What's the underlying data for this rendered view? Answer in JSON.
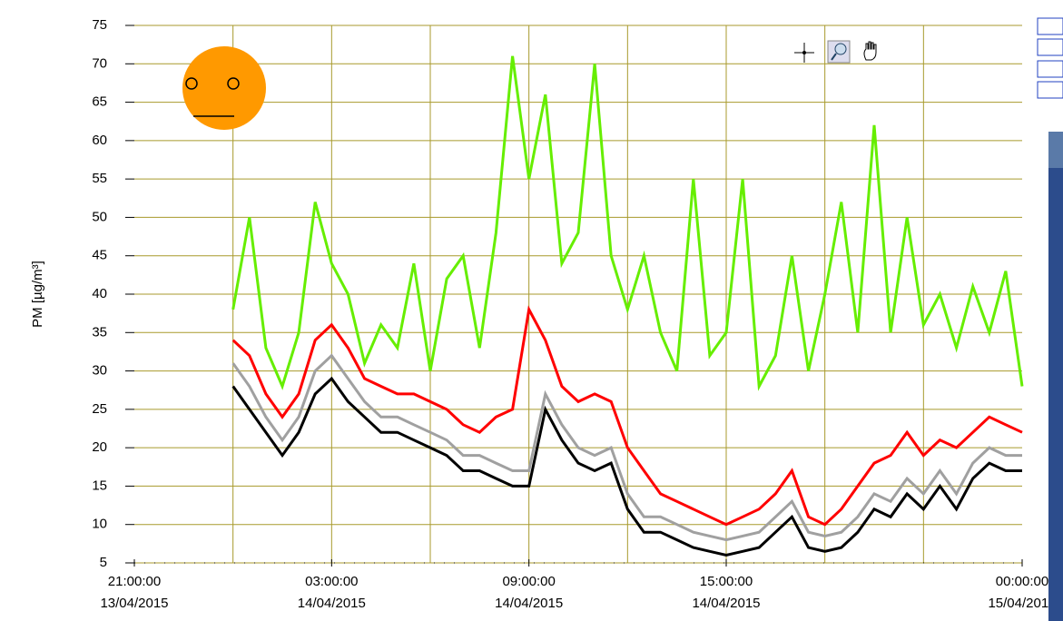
{
  "chart_data": {
    "type": "line",
    "ylabel": "PM [µg/m³]",
    "ylim": [
      5,
      75
    ],
    "yticks": [
      5,
      10,
      15,
      20,
      25,
      30,
      35,
      40,
      45,
      50,
      55,
      60,
      65,
      70,
      75
    ],
    "xlim": [
      "2015-04-13T21:00",
      "2015-04-15T00:00"
    ],
    "xticks": [
      {
        "value": "2015-04-13T21:00",
        "label": [
          "21:00:00",
          "13/04/2015"
        ]
      },
      {
        "value": "2015-04-14T03:00",
        "label": [
          "03:00:00",
          "14/04/2015"
        ]
      },
      {
        "value": "2015-04-14T09:00",
        "label": [
          "09:00:00",
          "14/04/2015"
        ]
      },
      {
        "value": "2015-04-14T15:00",
        "label": [
          "15:00:00",
          "14/04/2015"
        ]
      },
      {
        "value": "2015-04-15T00:00",
        "label": [
          "00:00:00",
          "15/04/2015"
        ]
      }
    ],
    "xgrid": [
      "2015-04-14T00:00",
      "2015-04-14T03:00",
      "2015-04-14T06:00",
      "2015-04-14T09:00",
      "2015-04-14T12:00",
      "2015-04-14T15:00",
      "2015-04-14T18:00",
      "2015-04-14T21:00"
    ],
    "grid": true,
    "grid_color": "#a89a2c",
    "x": [
      "2015-04-14T00:00",
      "2015-04-14T00:30",
      "2015-04-14T01:00",
      "2015-04-14T01:30",
      "2015-04-14T02:00",
      "2015-04-14T02:30",
      "2015-04-14T03:00",
      "2015-04-14T03:30",
      "2015-04-14T04:00",
      "2015-04-14T04:30",
      "2015-04-14T05:00",
      "2015-04-14T05:30",
      "2015-04-14T06:00",
      "2015-04-14T06:30",
      "2015-04-14T07:00",
      "2015-04-14T07:30",
      "2015-04-14T08:00",
      "2015-04-14T08:30",
      "2015-04-14T09:00",
      "2015-04-14T09:30",
      "2015-04-14T10:00",
      "2015-04-14T10:30",
      "2015-04-14T11:00",
      "2015-04-14T11:30",
      "2015-04-14T12:00",
      "2015-04-14T12:30",
      "2015-04-14T13:00",
      "2015-04-14T13:30",
      "2015-04-14T14:00",
      "2015-04-14T14:30",
      "2015-04-14T15:00",
      "2015-04-14T15:30",
      "2015-04-14T16:00",
      "2015-04-14T16:30",
      "2015-04-14T17:00",
      "2015-04-14T17:30",
      "2015-04-14T18:00",
      "2015-04-14T18:30",
      "2015-04-14T19:00",
      "2015-04-14T19:30",
      "2015-04-14T20:00",
      "2015-04-14T20:30",
      "2015-04-14T21:00",
      "2015-04-14T21:30",
      "2015-04-14T22:00",
      "2015-04-14T22:30",
      "2015-04-14T23:00",
      "2015-04-14T23:30",
      "2015-04-15T00:00"
    ],
    "series": [
      {
        "color": "#66ee00",
        "values": [
          38,
          50,
          33,
          28,
          35,
          52,
          44,
          40,
          31,
          36,
          33,
          44,
          30,
          42,
          45,
          33,
          48,
          71,
          55,
          66,
          44,
          48,
          70,
          45,
          38,
          45,
          35,
          30,
          55,
          32,
          35,
          55,
          28,
          32,
          45,
          30,
          40,
          52,
          35,
          62,
          35,
          50,
          36,
          40,
          33,
          41,
          35,
          43,
          28
        ]
      },
      {
        "color": "#ff0000",
        "values": [
          34,
          32,
          27,
          24,
          27,
          34,
          36,
          33,
          29,
          28,
          27,
          27,
          26,
          25,
          23,
          22,
          24,
          25,
          38,
          34,
          28,
          26,
          27,
          26,
          20,
          17,
          14,
          13,
          12,
          11,
          10,
          11,
          12,
          14,
          17,
          11,
          10,
          12,
          15,
          18,
          19,
          22,
          19,
          21,
          20,
          22,
          24,
          23,
          22
        ]
      },
      {
        "color": "#a0a0a0",
        "values": [
          31,
          28,
          24,
          21,
          24,
          30,
          32,
          29,
          26,
          24,
          24,
          23,
          22,
          21,
          19,
          19,
          18,
          17,
          17,
          27,
          23,
          20,
          19,
          20,
          14,
          11,
          11,
          10,
          9,
          8.5,
          8,
          8.5,
          9,
          11,
          13,
          9,
          8.5,
          9,
          11,
          14,
          13,
          16,
          14,
          17,
          14,
          18,
          20,
          19,
          19
        ]
      },
      {
        "color": "#000000",
        "values": [
          28,
          25,
          22,
          19,
          22,
          27,
          29,
          26,
          24,
          22,
          22,
          21,
          20,
          19,
          17,
          17,
          16,
          15,
          15,
          25,
          21,
          18,
          17,
          18,
          12,
          9,
          9,
          8,
          7,
          6.5,
          6,
          6.5,
          7,
          9,
          11,
          7,
          6.5,
          7,
          9,
          12,
          11,
          14,
          12,
          15,
          12,
          16,
          18,
          17,
          17
        ]
      }
    ]
  }
}
